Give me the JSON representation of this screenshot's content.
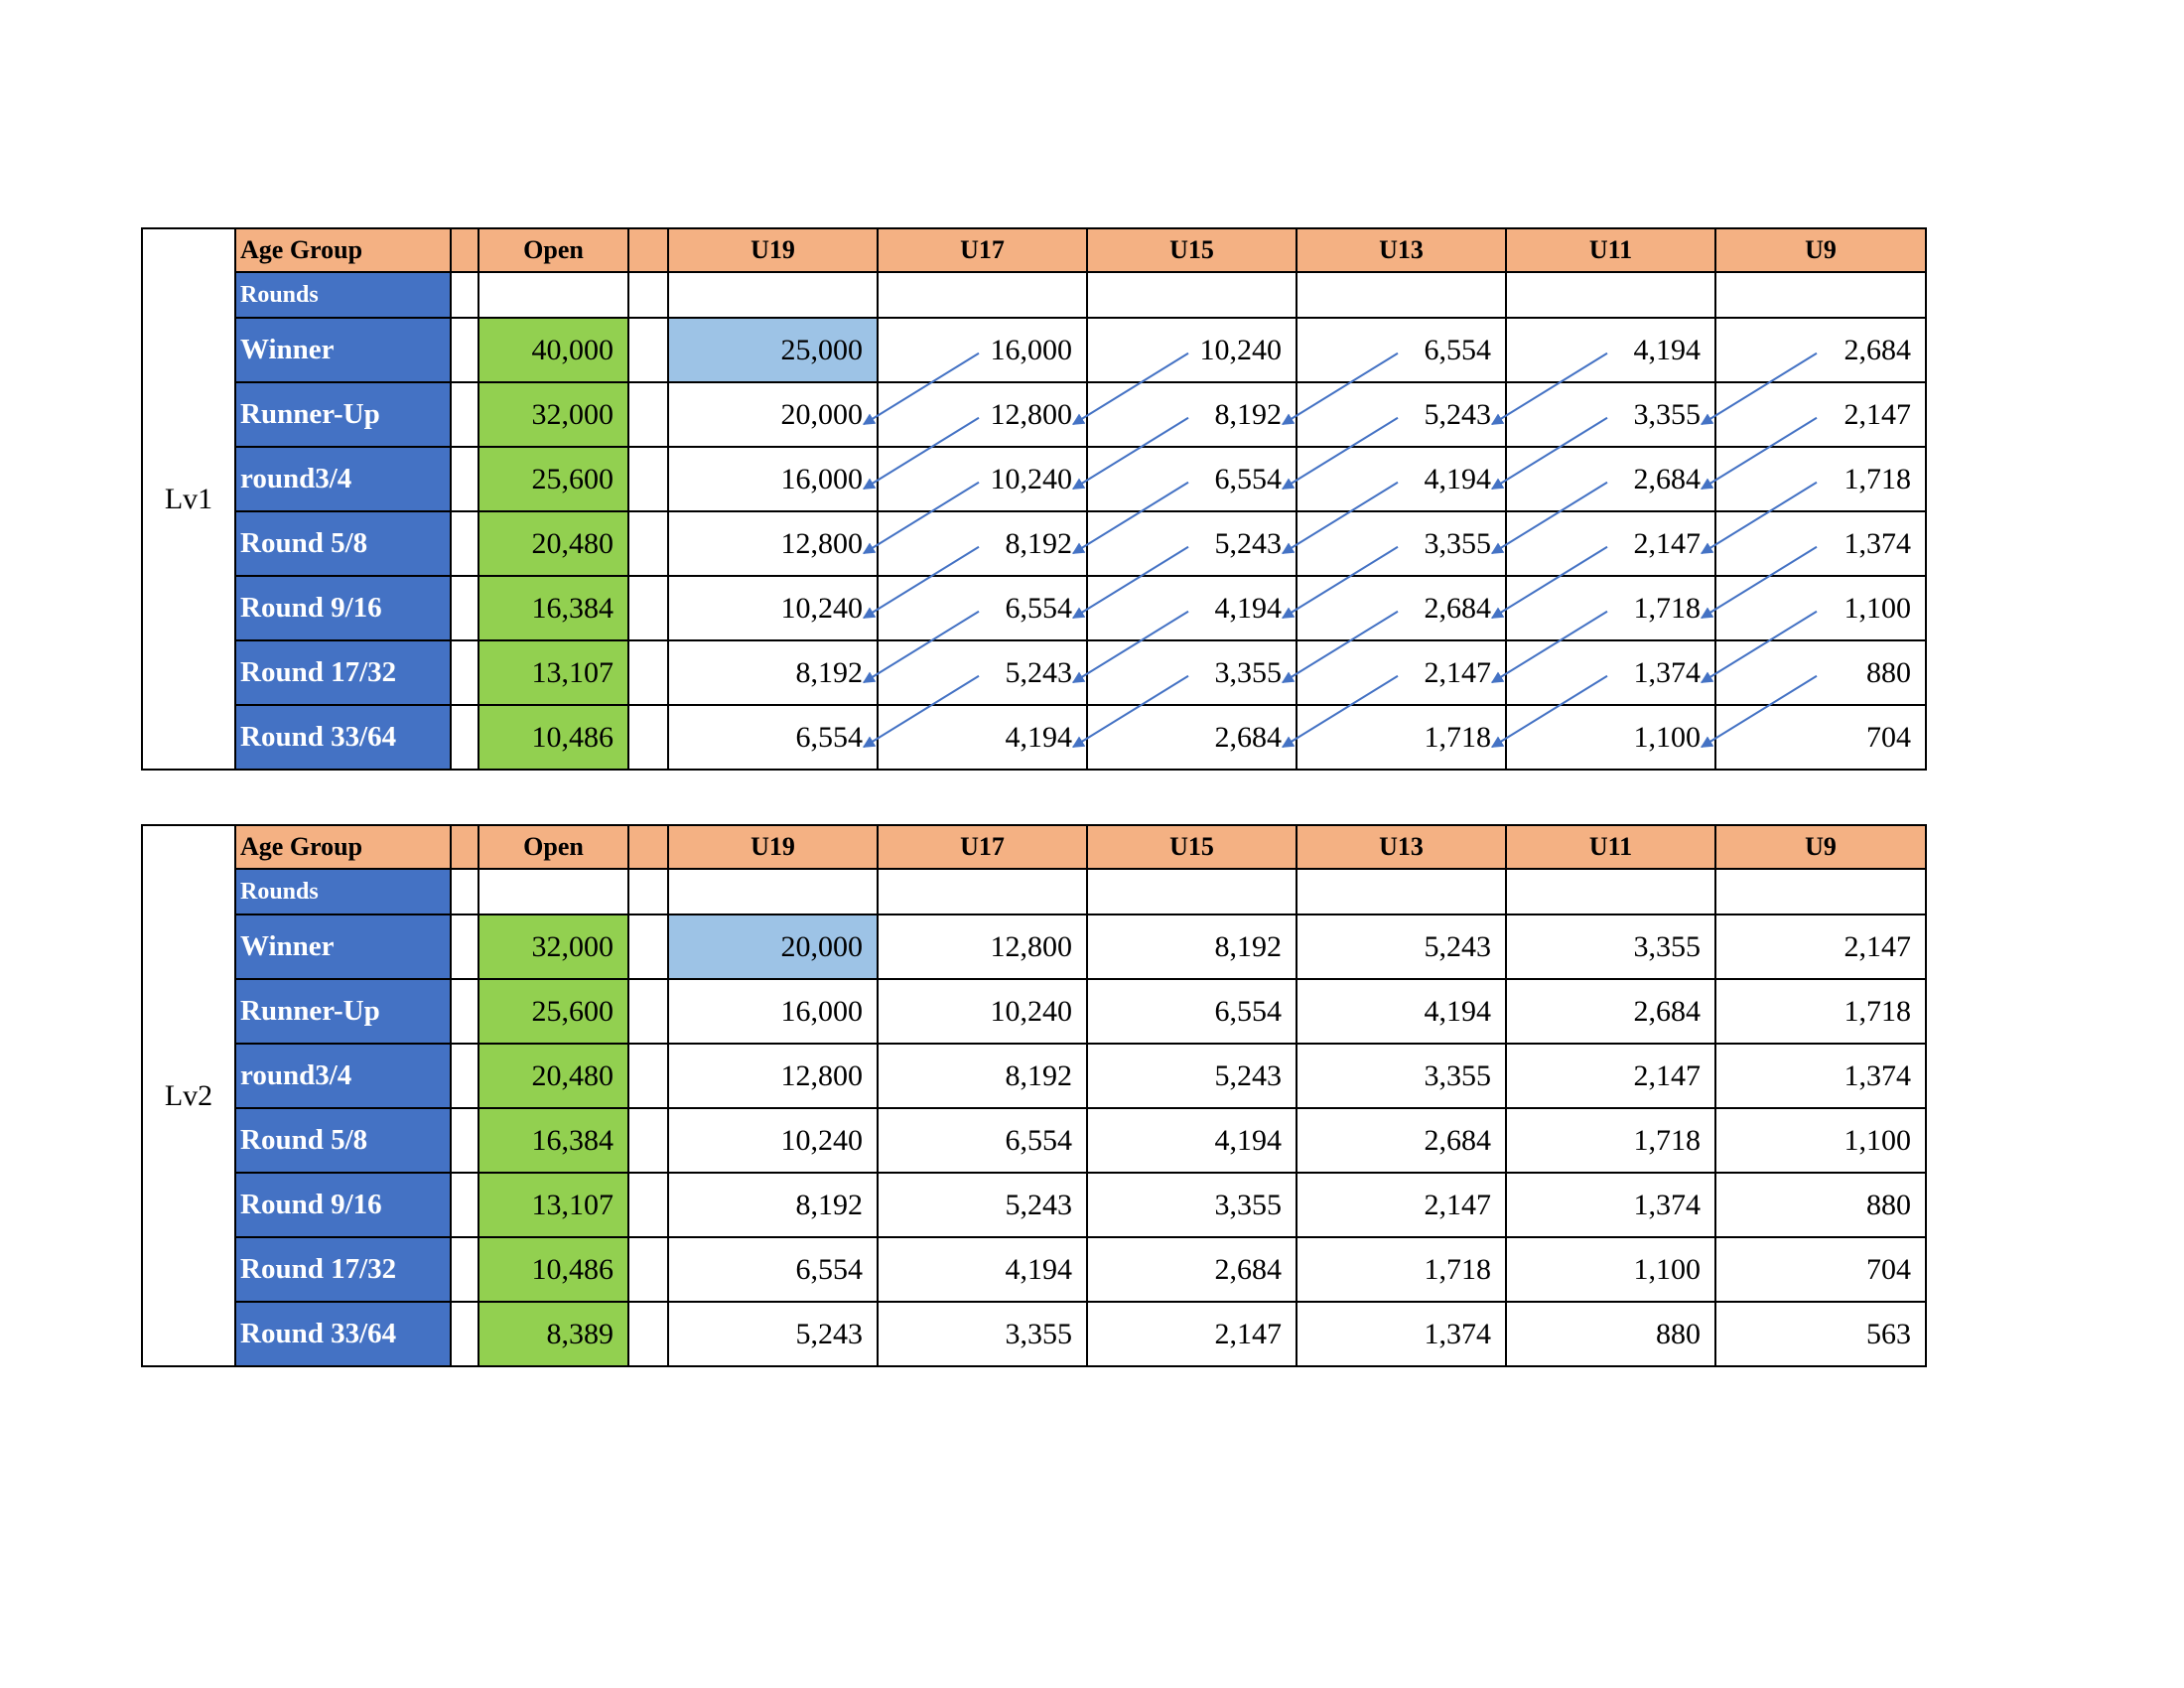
{
  "columns": {
    "age_group_label": "Age Group",
    "rounds_label": "Rounds",
    "open_label": "Open",
    "age_groups": [
      "U19",
      "U17",
      "U15",
      "U13",
      "U11",
      "U9"
    ]
  },
  "tables": [
    {
      "level": "Lv1",
      "rows": [
        {
          "round": "Winner",
          "open": "40,000",
          "values": [
            "25,000",
            "16,000",
            "10,240",
            "6,554",
            "4,194",
            "2,684"
          ]
        },
        {
          "round": "Runner-Up",
          "open": "32,000",
          "values": [
            "20,000",
            "12,800",
            "8,192",
            "5,243",
            "3,355",
            "2,147"
          ]
        },
        {
          "round": "round3/4",
          "open": "25,600",
          "values": [
            "16,000",
            "10,240",
            "6,554",
            "4,194",
            "2,684",
            "1,718"
          ]
        },
        {
          "round": "Round 5/8",
          "open": "20,480",
          "values": [
            "12,800",
            "8,192",
            "5,243",
            "3,355",
            "2,147",
            "1,374"
          ]
        },
        {
          "round": "Round 9/16",
          "open": "16,384",
          "values": [
            "10,240",
            "6,554",
            "4,194",
            "2,684",
            "1,718",
            "1,100"
          ]
        },
        {
          "round": "Round 17/32",
          "open": "13,107",
          "values": [
            "8,192",
            "5,243",
            "3,355",
            "2,147",
            "1,374",
            "880"
          ]
        },
        {
          "round": "Round 33/64",
          "open": "10,486",
          "values": [
            "6,554",
            "4,194",
            "2,684",
            "1,718",
            "1,100",
            "704"
          ]
        }
      ]
    },
    {
      "level": "Lv2",
      "rows": [
        {
          "round": "Winner",
          "open": "32,000",
          "values": [
            "20,000",
            "12,800",
            "8,192",
            "5,243",
            "3,355",
            "2,147"
          ]
        },
        {
          "round": "Runner-Up",
          "open": "25,600",
          "values": [
            "16,000",
            "10,240",
            "6,554",
            "4,194",
            "2,684",
            "1,718"
          ]
        },
        {
          "round": "round3/4",
          "open": "20,480",
          "values": [
            "12,800",
            "8,192",
            "5,243",
            "3,355",
            "2,147",
            "1,374"
          ]
        },
        {
          "round": "Round 5/8",
          "open": "16,384",
          "values": [
            "10,240",
            "6,554",
            "4,194",
            "2,684",
            "1,718",
            "1,100"
          ]
        },
        {
          "round": "Round 9/16",
          "open": "13,107",
          "values": [
            "8,192",
            "5,243",
            "3,355",
            "2,147",
            "1,374",
            "880"
          ]
        },
        {
          "round": "Round 17/32",
          "open": "10,486",
          "values": [
            "6,554",
            "4,194",
            "2,684",
            "1,718",
            "1,100",
            "704"
          ]
        },
        {
          "round": "Round 33/64",
          "open": "8,389",
          "values": [
            "5,243",
            "3,355",
            "2,147",
            "1,374",
            "880",
            "563"
          ]
        }
      ]
    }
  ],
  "colors": {
    "header_orange": "#f4b183",
    "round_blue": "#4472c4",
    "open_green": "#92d050",
    "highlight_lightblue": "#9dc3e6",
    "arrow_blue": "#4472c4"
  },
  "annotations": {
    "arrows_on_table": "Lv1",
    "arrow_direction": "from each age-group value diagonally down-left to the cell one row below in the next-older age group"
  }
}
